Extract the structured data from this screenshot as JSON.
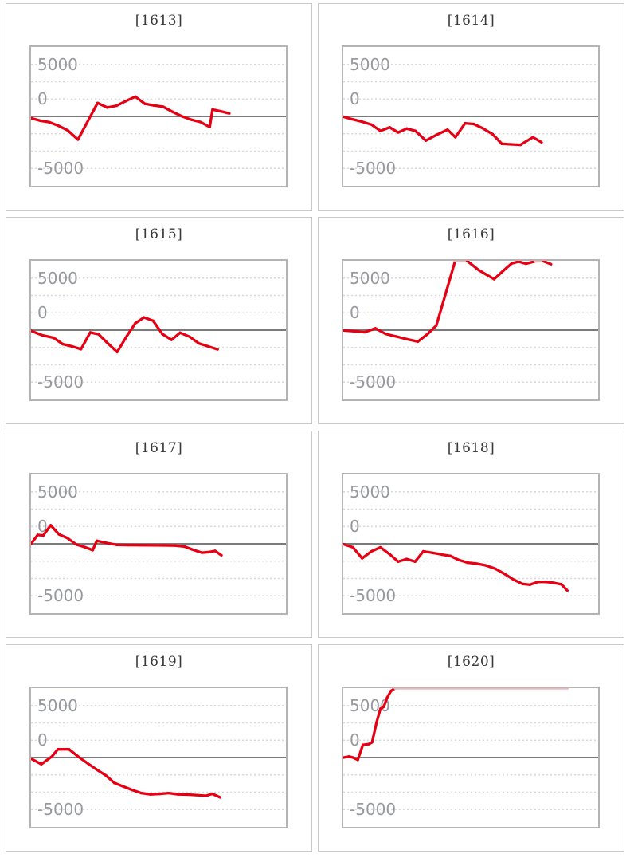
{
  "page": {
    "background": "#ffffff"
  },
  "axis": {
    "labels": {
      "top": "5000",
      "mid": "0",
      "bot": "-5000"
    }
  },
  "colors": {
    "line": "#e60013",
    "line_clipped": "#f3b8bd",
    "zero_line": "#7b7b7b",
    "gridline": "#d9d9d9",
    "plot_border": "#b4b4b4",
    "panel_border": "#cacaca",
    "axis_label": "#97999e",
    "title": "#38383a"
  },
  "chart_data": [
    {
      "type": "line",
      "title": "[1613]",
      "ylabel_ticks": [
        "5000",
        "0",
        "-5000"
      ],
      "ylim": [
        -6660,
        6660
      ],
      "clip_value": 6660,
      "x_is_fraction_of_plot_width": true,
      "grid": "dotted-horizontal",
      "legend": "none",
      "points": [
        [
          0,
          -170
        ],
        [
          0.036,
          -410
        ],
        [
          0.072,
          -560
        ],
        [
          0.108,
          -900
        ],
        [
          0.144,
          -1340
        ],
        [
          0.184,
          -2220
        ],
        [
          0.261,
          1290
        ],
        [
          0.299,
          850
        ],
        [
          0.335,
          1020
        ],
        [
          0.371,
          1460
        ],
        [
          0.409,
          1900
        ],
        [
          0.446,
          1220
        ],
        [
          0.482,
          1050
        ],
        [
          0.518,
          930
        ],
        [
          0.555,
          440
        ],
        [
          0.593,
          0
        ],
        [
          0.629,
          -320
        ],
        [
          0.665,
          -540
        ],
        [
          0.701,
          -1020
        ],
        [
          0.712,
          660
        ],
        [
          0.745,
          490
        ],
        [
          0.778,
          290
        ]
      ]
    },
    {
      "type": "line",
      "title": "[1614]",
      "ylabel_ticks": [
        "5000",
        "0",
        "-5000"
      ],
      "ylim": [
        -6660,
        6660
      ],
      "clip_value": 6660,
      "x_is_fraction_of_plot_width": true,
      "grid": "dotted-horizontal",
      "legend": "none",
      "points": [
        [
          0,
          -30
        ],
        [
          0.038,
          -290
        ],
        [
          0.074,
          -510
        ],
        [
          0.11,
          -780
        ],
        [
          0.146,
          -1390
        ],
        [
          0.182,
          -1050
        ],
        [
          0.215,
          -1540
        ],
        [
          0.249,
          -1170
        ],
        [
          0.283,
          -1390
        ],
        [
          0.324,
          -2320
        ],
        [
          0.367,
          -1760
        ],
        [
          0.409,
          -1270
        ],
        [
          0.44,
          -2000
        ],
        [
          0.478,
          -660
        ],
        [
          0.512,
          -730
        ],
        [
          0.548,
          -1150
        ],
        [
          0.586,
          -1710
        ],
        [
          0.622,
          -2630
        ],
        [
          0.658,
          -2680
        ],
        [
          0.695,
          -2730
        ],
        [
          0.744,
          -2000
        ],
        [
          0.778,
          -2490
        ]
      ]
    },
    {
      "type": "line",
      "title": "[1615]",
      "ylabel_ticks": [
        "5000",
        "0",
        "-5000"
      ],
      "ylim": [
        -6660,
        6660
      ],
      "clip_value": 6660,
      "x_is_fraction_of_plot_width": true,
      "grid": "dotted-horizontal",
      "legend": "none",
      "points": [
        [
          0,
          -70
        ],
        [
          0.046,
          -510
        ],
        [
          0.088,
          -730
        ],
        [
          0.124,
          -1340
        ],
        [
          0.16,
          -1560
        ],
        [
          0.196,
          -1830
        ],
        [
          0.232,
          -220
        ],
        [
          0.265,
          -390
        ],
        [
          0.302,
          -1290
        ],
        [
          0.338,
          -2100
        ],
        [
          0.376,
          -560
        ],
        [
          0.409,
          660
        ],
        [
          0.443,
          1220
        ],
        [
          0.479,
          900
        ],
        [
          0.515,
          -370
        ],
        [
          0.551,
          -930
        ],
        [
          0.585,
          -250
        ],
        [
          0.622,
          -630
        ],
        [
          0.658,
          -1270
        ],
        [
          0.694,
          -1560
        ],
        [
          0.732,
          -1850
        ]
      ]
    },
    {
      "type": "line",
      "title": "[1616]",
      "ylabel_ticks": [
        "5000",
        "0",
        "-5000"
      ],
      "ylim": [
        -6660,
        6660
      ],
      "clip_value": 6660,
      "x_is_fraction_of_plot_width": true,
      "grid": "dotted-horizontal",
      "legend": "none",
      "points": [
        [
          0,
          -30
        ],
        [
          0.043,
          -100
        ],
        [
          0.084,
          -200
        ],
        [
          0.126,
          170
        ],
        [
          0.167,
          -370
        ],
        [
          0.208,
          -610
        ],
        [
          0.249,
          -860
        ],
        [
          0.293,
          -1100
        ],
        [
          0.331,
          -370
        ],
        [
          0.365,
          440
        ],
        [
          0.403,
          3610
        ],
        [
          0.439,
          6660
        ],
        [
          0.486,
          6660
        ],
        [
          0.532,
          5760
        ],
        [
          0.571,
          5200
        ],
        [
          0.592,
          4900
        ],
        [
          0.627,
          5690
        ],
        [
          0.661,
          6420
        ],
        [
          0.688,
          6590
        ],
        [
          0.717,
          6390
        ],
        [
          0.753,
          6620
        ],
        [
          0.784,
          6640
        ],
        [
          0.815,
          6340
        ]
      ]
    },
    {
      "type": "line",
      "title": "[1617]",
      "ylabel_ticks": [
        "5000",
        "0",
        "-5000"
      ],
      "ylim": [
        -6660,
        6660
      ],
      "clip_value": 6660,
      "x_is_fraction_of_plot_width": true,
      "grid": "dotted-horizontal",
      "legend": "none",
      "points": [
        [
          0,
          0
        ],
        [
          0.026,
          850
        ],
        [
          0.048,
          800
        ],
        [
          0.077,
          1780
        ],
        [
          0.11,
          900
        ],
        [
          0.142,
          560
        ],
        [
          0.178,
          -70
        ],
        [
          0.211,
          -320
        ],
        [
          0.242,
          -610
        ],
        [
          0.258,
          290
        ],
        [
          0.294,
          100
        ],
        [
          0.335,
          -100
        ],
        [
          0.381,
          -120
        ],
        [
          0.427,
          -130
        ],
        [
          0.474,
          -140
        ],
        [
          0.52,
          -150
        ],
        [
          0.566,
          -170
        ],
        [
          0.603,
          -270
        ],
        [
          0.634,
          -560
        ],
        [
          0.67,
          -850
        ],
        [
          0.696,
          -800
        ],
        [
          0.722,
          -680
        ],
        [
          0.747,
          -1100
        ]
      ]
    },
    {
      "type": "line",
      "title": "[1618]",
      "ylabel_ticks": [
        "5000",
        "0",
        "-5000"
      ],
      "ylim": [
        -6660,
        6660
      ],
      "clip_value": 6660,
      "x_is_fraction_of_plot_width": true,
      "grid": "dotted-horizontal",
      "legend": "none",
      "points": [
        [
          0,
          -30
        ],
        [
          0.038,
          -340
        ],
        [
          0.074,
          -1390
        ],
        [
          0.11,
          -730
        ],
        [
          0.146,
          -340
        ],
        [
          0.182,
          -1000
        ],
        [
          0.215,
          -1710
        ],
        [
          0.249,
          -1460
        ],
        [
          0.282,
          -1710
        ],
        [
          0.314,
          -730
        ],
        [
          0.35,
          -860
        ],
        [
          0.386,
          -1030
        ],
        [
          0.421,
          -1170
        ],
        [
          0.452,
          -1540
        ],
        [
          0.488,
          -1810
        ],
        [
          0.524,
          -1910
        ],
        [
          0.56,
          -2080
        ],
        [
          0.596,
          -2390
        ],
        [
          0.632,
          -2880
        ],
        [
          0.668,
          -3440
        ],
        [
          0.704,
          -3860
        ],
        [
          0.732,
          -3930
        ],
        [
          0.763,
          -3660
        ],
        [
          0.797,
          -3660
        ],
        [
          0.828,
          -3760
        ],
        [
          0.856,
          -3900
        ],
        [
          0.879,
          -4490
        ]
      ]
    },
    {
      "type": "line",
      "title": "[1619]",
      "ylabel_ticks": [
        "5000",
        "0",
        "-5000"
      ],
      "ylim": [
        -6660,
        6660
      ],
      "clip_value": 6660,
      "x_is_fraction_of_plot_width": true,
      "grid": "dotted-horizontal",
      "legend": "none",
      "points": [
        [
          0,
          -100
        ],
        [
          0.04,
          -640
        ],
        [
          0.082,
          100
        ],
        [
          0.105,
          790
        ],
        [
          0.149,
          790
        ],
        [
          0.186,
          70
        ],
        [
          0.222,
          -560
        ],
        [
          0.258,
          -1170
        ],
        [
          0.294,
          -1730
        ],
        [
          0.327,
          -2440
        ],
        [
          0.362,
          -2780
        ],
        [
          0.397,
          -3120
        ],
        [
          0.433,
          -3420
        ],
        [
          0.469,
          -3540
        ],
        [
          0.505,
          -3490
        ],
        [
          0.541,
          -3420
        ],
        [
          0.577,
          -3540
        ],
        [
          0.613,
          -3560
        ],
        [
          0.649,
          -3610
        ],
        [
          0.686,
          -3680
        ],
        [
          0.711,
          -3490
        ],
        [
          0.742,
          -3830
        ]
      ]
    },
    {
      "type": "line",
      "title": "[1620]",
      "ylabel_ticks": [
        "5000",
        "0",
        "-5000"
      ],
      "ylim": [
        -6660,
        6660
      ],
      "clip_value": 6660,
      "x_is_fraction_of_plot_width": true,
      "grid": "dotted-horizontal",
      "legend": "none",
      "points": [
        [
          0,
          0
        ],
        [
          0.023,
          100
        ],
        [
          0.038,
          0
        ],
        [
          0.057,
          -220
        ],
        [
          0.077,
          1220
        ],
        [
          0.1,
          1290
        ],
        [
          0.113,
          1460
        ],
        [
          0.131,
          3420
        ],
        [
          0.146,
          4690
        ],
        [
          0.159,
          4880
        ],
        [
          0.172,
          5740
        ],
        [
          0.187,
          6390
        ],
        [
          0.203,
          6660
        ],
        [
          0.88,
          6660
        ]
      ]
    }
  ],
  "render": {
    "clip_threshold": 6600,
    "gridline_count": 7,
    "solid_gridline_index": 4
  }
}
